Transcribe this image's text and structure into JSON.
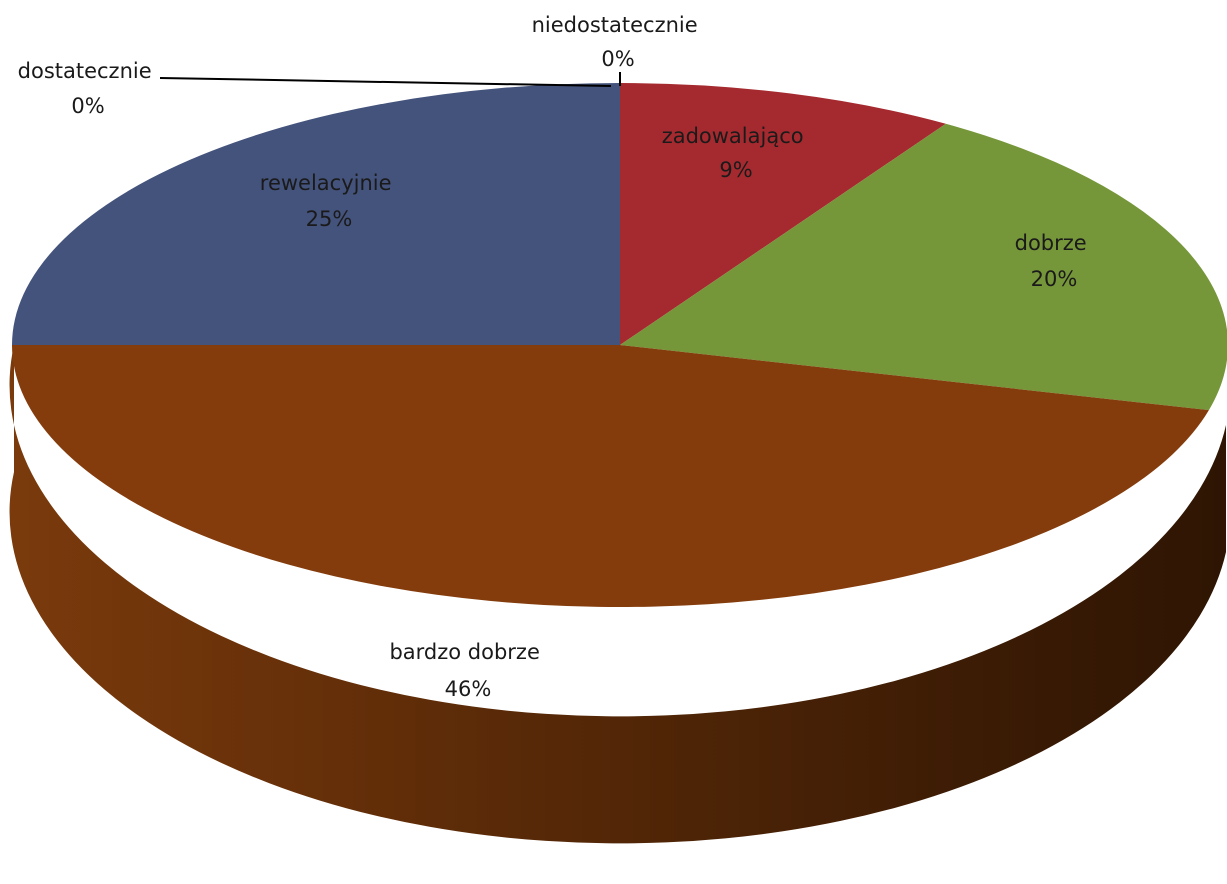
{
  "chart_data": {
    "type": "pie",
    "title": "",
    "style": "3d",
    "legend": "none",
    "slices": [
      {
        "label": "niedostatecznie",
        "percent_label": "0%",
        "value": 0,
        "color": "#4f81bd"
      },
      {
        "label": "zadowalająco",
        "percent_label": "9%",
        "value": 9,
        "color": "#a52a2f"
      },
      {
        "label": "dobrze",
        "percent_label": "20%",
        "value": 20,
        "color": "#76963a"
      },
      {
        "label": "bardzo dobrze",
        "percent_label": "46%",
        "value": 46,
        "color": "#843c0c"
      },
      {
        "label": "rewelacyjnie",
        "percent_label": "25%",
        "value": 25,
        "color": "#44537c"
      },
      {
        "label": "dostatecznie",
        "percent_label": "0%",
        "value": 0,
        "color": "#7f7f7f"
      }
    ]
  }
}
